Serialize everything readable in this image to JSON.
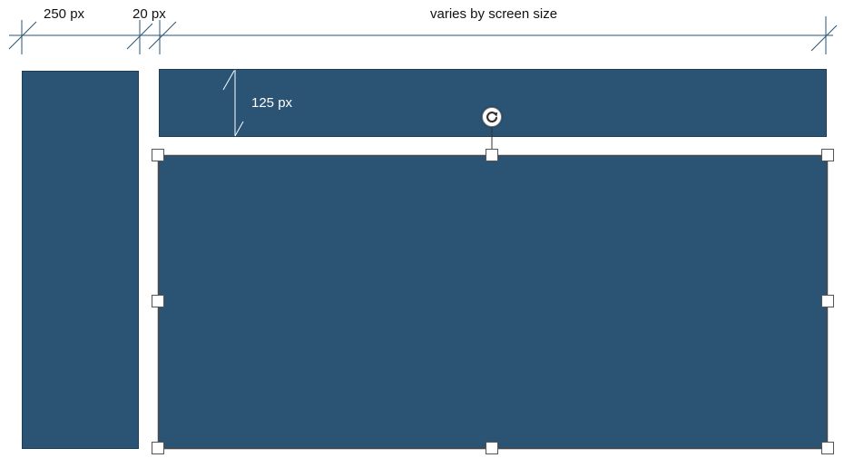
{
  "colors": {
    "block_fill": "#2a5374",
    "dimension_line": "#2a5374",
    "handle_border": "#555555",
    "inner_dimension": "#ffffff"
  },
  "dimensions": {
    "sidebar_width": "250 px",
    "gutter_width": "20 px",
    "content_width": "varies by screen size",
    "header_height": "125 px"
  },
  "selection": {
    "rotate_icon": "rotate-icon",
    "handle_icon": "resize-handle"
  }
}
